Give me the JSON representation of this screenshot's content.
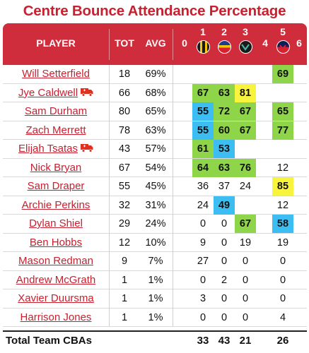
{
  "title": "Centre Bounce Attendance Percentage",
  "headers": {
    "player": "PLAYER",
    "tot": "TOT",
    "avg": "AVG",
    "rounds": [
      "0",
      "1",
      "2",
      "3",
      "4",
      "5",
      "6"
    ]
  },
  "round_badges": {
    "1": {
      "colors": [
        "#1a1a1a",
        "#f2c40f"
      ],
      "icon": "richmond-badge-icon"
    },
    "2": {
      "colors": [
        "#d9202f",
        "#f2c40f",
        "#1e3c8c"
      ],
      "icon": "west-coast-badge-icon"
    },
    "3": {
      "colors": [
        "#1a1a1a",
        "#4ab5a3"
      ],
      "icon": "collingwood-badge-icon"
    },
    "5": {
      "colors": [
        "#d9202f",
        "#0a1e5a"
      ],
      "icon": "melbourne-badge-icon"
    }
  },
  "highlight_colors": {
    "green": "#8ed54a",
    "blue": "#3dbef2",
    "yellow": "#f8f33d"
  },
  "players": [
    {
      "name": "Will Setterfield",
      "tot": "18",
      "avg": "69%",
      "injured": false,
      "r0": "",
      "r1": "",
      "r2": "",
      "r3": "",
      "r4": "",
      "r5": "69",
      "r6": "",
      "c1": "",
      "c2": "",
      "c3": "",
      "c5": "green"
    },
    {
      "name": "Jye Caldwell",
      "tot": "66",
      "avg": "68%",
      "injured": true,
      "r0": "",
      "r1": "67",
      "r2": "63",
      "r3": "81",
      "r4": "",
      "r5": "",
      "r6": "",
      "c1": "green",
      "c2": "green",
      "c3": "yellow",
      "c5": ""
    },
    {
      "name": "Sam Durham",
      "tot": "80",
      "avg": "65%",
      "injured": false,
      "r0": "",
      "r1": "55",
      "r2": "72",
      "r3": "67",
      "r4": "",
      "r5": "65",
      "r6": "",
      "c1": "blue",
      "c2": "green",
      "c3": "green",
      "c5": "green"
    },
    {
      "name": "Zach Merrett",
      "tot": "78",
      "avg": "63%",
      "injured": false,
      "r0": "",
      "r1": "55",
      "r2": "60",
      "r3": "67",
      "r4": "",
      "r5": "77",
      "r6": "",
      "c1": "blue",
      "c2": "green",
      "c3": "green",
      "c5": "green"
    },
    {
      "name": "Elijah Tsatas",
      "tot": "43",
      "avg": "57%",
      "injured": true,
      "r0": "",
      "r1": "61",
      "r2": "53",
      "r3": "",
      "r4": "",
      "r5": "",
      "r6": "",
      "c1": "green",
      "c2": "blue",
      "c3": "",
      "c5": ""
    },
    {
      "name": "Nick Bryan",
      "tot": "67",
      "avg": "54%",
      "injured": false,
      "r0": "",
      "r1": "64",
      "r2": "63",
      "r3": "76",
      "r4": "",
      "r5": "12",
      "r6": "",
      "c1": "green",
      "c2": "green",
      "c3": "green",
      "c5": ""
    },
    {
      "name": "Sam Draper",
      "tot": "55",
      "avg": "45%",
      "injured": false,
      "r0": "",
      "r1": "36",
      "r2": "37",
      "r3": "24",
      "r4": "",
      "r5": "85",
      "r6": "",
      "c1": "",
      "c2": "",
      "c3": "",
      "c5": "yellow"
    },
    {
      "name": "Archie Perkins",
      "tot": "32",
      "avg": "31%",
      "injured": false,
      "r0": "",
      "r1": "24",
      "r2": "49",
      "r3": "",
      "r4": "",
      "r5": "12",
      "r6": "",
      "c1": "",
      "c2": "blue",
      "c3": "",
      "c5": ""
    },
    {
      "name": "Dylan Shiel",
      "tot": "29",
      "avg": "24%",
      "injured": false,
      "r0": "",
      "r1": "0",
      "r2": "0",
      "r3": "67",
      "r4": "",
      "r5": "58",
      "r6": "",
      "c1": "",
      "c2": "",
      "c3": "green",
      "c5": "blue"
    },
    {
      "name": "Ben Hobbs",
      "tot": "12",
      "avg": "10%",
      "injured": false,
      "r0": "",
      "r1": "9",
      "r2": "0",
      "r3": "19",
      "r4": "",
      "r5": "19",
      "r6": "",
      "c1": "",
      "c2": "",
      "c3": "",
      "c5": ""
    },
    {
      "name": "Mason Redman",
      "tot": "9",
      "avg": "7%",
      "injured": false,
      "r0": "",
      "r1": "27",
      "r2": "0",
      "r3": "0",
      "r4": "",
      "r5": "0",
      "r6": "",
      "c1": "",
      "c2": "",
      "c3": "",
      "c5": ""
    },
    {
      "name": "Andrew McGrath",
      "tot": "1",
      "avg": "1%",
      "injured": false,
      "r0": "",
      "r1": "0",
      "r2": "2",
      "r3": "0",
      "r4": "",
      "r5": "0",
      "r6": "",
      "c1": "",
      "c2": "",
      "c3": "",
      "c5": ""
    },
    {
      "name": "Xavier Duursma",
      "tot": "1",
      "avg": "1%",
      "injured": false,
      "r0": "",
      "r1": "3",
      "r2": "0",
      "r3": "0",
      "r4": "",
      "r5": "0",
      "r6": "",
      "c1": "",
      "c2": "",
      "c3": "",
      "c5": ""
    },
    {
      "name": "Harrison Jones",
      "tot": "1",
      "avg": "1%",
      "injured": false,
      "r0": "",
      "r1": "0",
      "r2": "0",
      "r3": "0",
      "r4": "",
      "r5": "4",
      "r6": "",
      "c1": "",
      "c2": "",
      "c3": "",
      "c5": ""
    }
  ],
  "totals": {
    "label": "Total Team CBAs",
    "r1": "33",
    "r2": "43",
    "r3": "21",
    "r5": "26"
  }
}
